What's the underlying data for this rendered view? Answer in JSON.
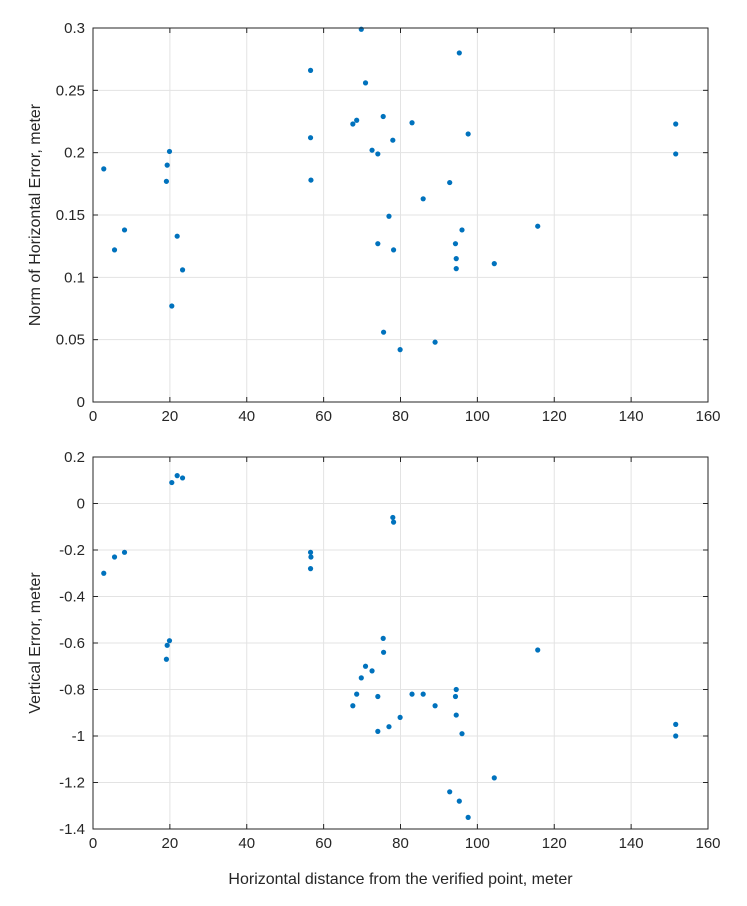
{
  "chart_data": [
    {
      "type": "scatter",
      "title": "",
      "xlabel": "",
      "ylabel": "Norm of Horizontal Error, meter",
      "xlim": [
        0,
        160
      ],
      "ylim": [
        0,
        0.3
      ],
      "xticks": [
        0,
        20,
        40,
        60,
        80,
        100,
        120,
        140,
        160
      ],
      "yticks": [
        0,
        0.05,
        0.1,
        0.15,
        0.2,
        0.25,
        0.3
      ],
      "ytick_labels": [
        "0",
        "0.05",
        "0.1",
        "0.15",
        "0.2",
        "0.25",
        "0.3"
      ],
      "grid": true,
      "color": "#0072bd",
      "points": [
        [
          2.8,
          0.187
        ],
        [
          5.6,
          0.122
        ],
        [
          8.2,
          0.138
        ],
        [
          19.1,
          0.177
        ],
        [
          19.3,
          0.19
        ],
        [
          19.9,
          0.201
        ],
        [
          20.5,
          0.077
        ],
        [
          21.9,
          0.133
        ],
        [
          23.3,
          0.106
        ],
        [
          56.6,
          0.266
        ],
        [
          56.6,
          0.212
        ],
        [
          56.7,
          0.178
        ],
        [
          67.6,
          0.223
        ],
        [
          68.6,
          0.226
        ],
        [
          69.8,
          0.299
        ],
        [
          70.9,
          0.256
        ],
        [
          72.6,
          0.202
        ],
        [
          74.1,
          0.199
        ],
        [
          74.1,
          0.127
        ],
        [
          75.5,
          0.229
        ],
        [
          75.6,
          0.056
        ],
        [
          77.0,
          0.149
        ],
        [
          78.0,
          0.21
        ],
        [
          78.2,
          0.122
        ],
        [
          79.9,
          0.042
        ],
        [
          83.0,
          0.224
        ],
        [
          85.9,
          0.163
        ],
        [
          89.0,
          0.048
        ],
        [
          92.8,
          0.176
        ],
        [
          94.3,
          0.127
        ],
        [
          94.5,
          0.115
        ],
        [
          94.5,
          0.107
        ],
        [
          95.3,
          0.28
        ],
        [
          96.0,
          0.138
        ],
        [
          97.6,
          0.215
        ],
        [
          104.4,
          0.111
        ],
        [
          115.7,
          0.141
        ],
        [
          151.6,
          0.223
        ],
        [
          151.6,
          0.199
        ]
      ]
    },
    {
      "type": "scatter",
      "title": "",
      "xlabel": "Horizontal distance from the verified point, meter",
      "ylabel": "Vertical Error, meter",
      "xlim": [
        0,
        160
      ],
      "ylim": [
        -1.4,
        0.2
      ],
      "xticks": [
        0,
        20,
        40,
        60,
        80,
        100,
        120,
        140,
        160
      ],
      "yticks": [
        -1.4,
        -1.2,
        -1,
        -0.8,
        -0.6,
        -0.4,
        -0.2,
        0,
        0.2
      ],
      "ytick_labels": [
        "-1.4",
        "-1.2",
        "-1",
        "-0.8",
        "-0.6",
        "-0.4",
        "-0.2",
        "0",
        "0.2"
      ],
      "grid": true,
      "color": "#0072bd",
      "points": [
        [
          2.8,
          -0.3
        ],
        [
          5.6,
          -0.23
        ],
        [
          8.2,
          -0.21
        ],
        [
          19.1,
          -0.67
        ],
        [
          19.3,
          -0.61
        ],
        [
          19.9,
          -0.59
        ],
        [
          20.5,
          0.09
        ],
        [
          21.9,
          0.12
        ],
        [
          23.3,
          0.11
        ],
        [
          56.6,
          -0.28
        ],
        [
          56.6,
          -0.21
        ],
        [
          56.7,
          -0.23
        ],
        [
          67.6,
          -0.87
        ],
        [
          68.6,
          -0.82
        ],
        [
          69.8,
          -0.75
        ],
        [
          70.9,
          -0.7
        ],
        [
          72.6,
          -0.72
        ],
        [
          74.1,
          -0.98
        ],
        [
          74.1,
          -0.83
        ],
        [
          75.5,
          -0.58
        ],
        [
          75.6,
          -0.64
        ],
        [
          77.0,
          -0.96
        ],
        [
          78.0,
          -0.06
        ],
        [
          78.2,
          -0.08
        ],
        [
          79.9,
          -0.92
        ],
        [
          83.0,
          -0.82
        ],
        [
          85.9,
          -0.82
        ],
        [
          89.0,
          -0.87
        ],
        [
          92.8,
          -1.24
        ],
        [
          94.3,
          -0.83
        ],
        [
          94.5,
          -0.91
        ],
        [
          94.5,
          -0.8
        ],
        [
          95.3,
          -1.28
        ],
        [
          96.0,
          -0.99
        ],
        [
          97.6,
          -1.35
        ],
        [
          104.4,
          -1.18
        ],
        [
          115.7,
          -0.63
        ],
        [
          151.6,
          -0.95
        ],
        [
          151.6,
          -1.0
        ]
      ]
    }
  ]
}
